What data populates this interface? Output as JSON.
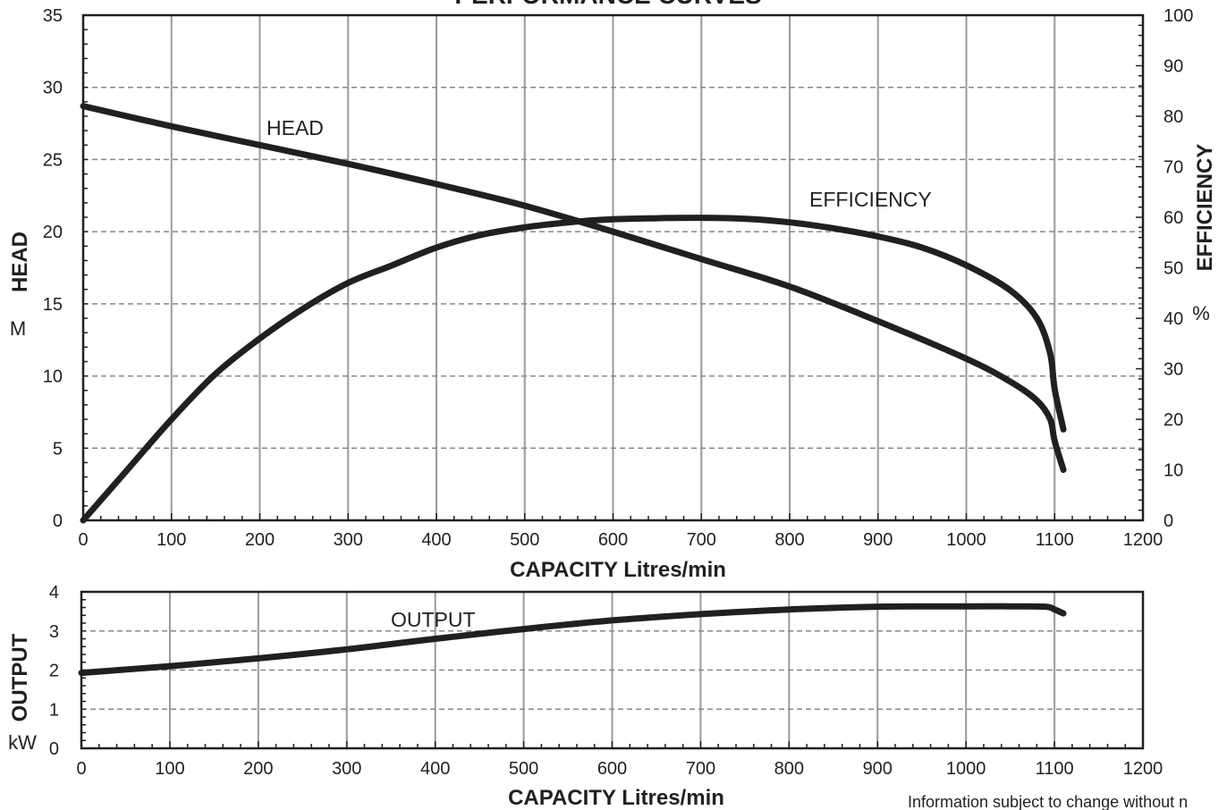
{
  "title": "PERFORMANCE CURVES",
  "footer_note": "Information subject to change without n",
  "colors": {
    "curve": "#231f20",
    "grid_solid": "#9a9a9a",
    "grid_dashed": "#888888",
    "frame": "#231f20"
  },
  "chart_data": [
    {
      "type": "line",
      "title": "PERFORMANCE CURVES",
      "xlabel": "CAPACITY Litres/min",
      "xlim": [
        0,
        1200
      ],
      "x_ticks": [
        "0",
        "100",
        "200",
        "300",
        "400",
        "500",
        "600",
        "700",
        "800",
        "900",
        "1000",
        "1100",
        "1200"
      ],
      "ylabel_left": "HEAD",
      "ylabel_left_unit": "M",
      "ylim_left": [
        0,
        35
      ],
      "y_ticks_left": [
        "0",
        "5",
        "10",
        "15",
        "20",
        "25",
        "30",
        "35"
      ],
      "ylabel_right": "EFFICIENCY",
      "ylabel_right_unit": "%",
      "ylim_right": [
        0,
        100
      ],
      "y_ticks_right": [
        "0",
        "10",
        "20",
        "30",
        "40",
        "50",
        "60",
        "70",
        "80",
        "90",
        "100"
      ],
      "grid": "vertical solid, horizontal dashed",
      "series": [
        {
          "name": "HEAD",
          "axis": "left",
          "x": [
            0,
            100,
            200,
            300,
            400,
            500,
            600,
            700,
            800,
            900,
            1000,
            1050,
            1080,
            1095,
            1100,
            1110
          ],
          "y": [
            28.7,
            27.3,
            26.0,
            24.7,
            23.3,
            21.8,
            20.0,
            18.1,
            16.2,
            13.8,
            11.2,
            9.6,
            8.3,
            7.0,
            5.5,
            3.5
          ]
        },
        {
          "name": "EFFICIENCY",
          "axis": "right",
          "x": [
            0,
            50,
            100,
            150,
            200,
            250,
            300,
            350,
            400,
            450,
            500,
            550,
            600,
            650,
            700,
            750,
            800,
            850,
            900,
            950,
            1000,
            1050,
            1080,
            1095,
            1100,
            1110
          ],
          "y": [
            0,
            10,
            20,
            29,
            36,
            42,
            47,
            50.5,
            54,
            56.5,
            58,
            59,
            59.6,
            59.8,
            59.9,
            59.7,
            59,
            57.8,
            56.2,
            54,
            50.5,
            45.5,
            40,
            33,
            26,
            18
          ]
        }
      ]
    },
    {
      "type": "line",
      "xlabel": "CAPACITY Litres/min",
      "xlim": [
        0,
        1200
      ],
      "x_ticks": [
        "0",
        "100",
        "200",
        "300",
        "400",
        "500",
        "600",
        "700",
        "800",
        "900",
        "1000",
        "1100",
        "1200"
      ],
      "ylabel": "OUTPUT",
      "ylabel_unit": "kW",
      "ylim": [
        0,
        4
      ],
      "y_ticks": [
        "0",
        "1",
        "2",
        "3",
        "4"
      ],
      "grid": "vertical solid, horizontal dashed",
      "series": [
        {
          "name": "OUTPUT",
          "x": [
            0,
            100,
            200,
            300,
            400,
            500,
            600,
            700,
            800,
            900,
            1000,
            1050,
            1090,
            1100,
            1110
          ],
          "y": [
            1.93,
            2.1,
            2.3,
            2.53,
            2.8,
            3.05,
            3.27,
            3.43,
            3.55,
            3.62,
            3.63,
            3.63,
            3.62,
            3.55,
            3.45
          ]
        }
      ]
    }
  ]
}
